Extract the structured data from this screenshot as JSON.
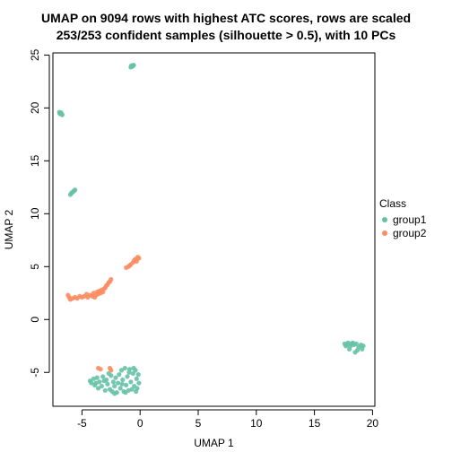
{
  "chart_data": {
    "type": "scatter",
    "title": "UMAP on 9094 rows with highest ATC scores, rows are scaled",
    "subtitle": "253/253 confident samples (silhouette > 0.5), with 10 PCs",
    "xlabel": "UMAP 1",
    "ylabel": "UMAP 2",
    "xlim": [
      -7.5,
      20.2
    ],
    "ylim": [
      -8.2,
      25.2
    ],
    "xticks": [
      -5,
      0,
      5,
      10,
      15,
      20
    ],
    "yticks": [
      -5,
      0,
      5,
      10,
      15,
      20,
      25
    ],
    "grid": false,
    "legend": {
      "title": "Class",
      "placement": "right",
      "entries": [
        {
          "label": "group1",
          "color": "#66C2A5"
        },
        {
          "label": "group2",
          "color": "#FC8D62"
        }
      ]
    },
    "series": [
      {
        "name": "group1",
        "color": "#66C2A5",
        "points": [
          [
            -0.75,
            24.0
          ],
          [
            -0.7,
            23.9
          ],
          [
            -0.55,
            24.05
          ],
          [
            -0.65,
            23.95
          ],
          [
            -0.8,
            23.85
          ],
          [
            -0.6,
            24.0
          ],
          [
            -6.95,
            19.6
          ],
          [
            -6.85,
            19.5
          ],
          [
            -6.75,
            19.4
          ],
          [
            -6.9,
            19.45
          ],
          [
            -6.8,
            19.55
          ],
          [
            -6.7,
            19.35
          ],
          [
            -6.0,
            11.8
          ],
          [
            -5.9,
            11.95
          ],
          [
            -5.75,
            12.1
          ],
          [
            -5.6,
            12.25
          ],
          [
            -5.85,
            12.0
          ],
          [
            -5.65,
            12.2
          ],
          [
            -4.3,
            -5.8
          ],
          [
            -4.2,
            -6.0
          ],
          [
            -4.0,
            -5.6
          ],
          [
            -3.9,
            -6.2
          ],
          [
            -3.7,
            -5.5
          ],
          [
            -3.6,
            -6.5
          ],
          [
            -3.5,
            -5.9
          ],
          [
            -3.3,
            -6.3
          ],
          [
            -3.2,
            -5.4
          ],
          [
            -3.0,
            -6.7
          ],
          [
            -2.9,
            -5.7
          ],
          [
            -2.8,
            -6.1
          ],
          [
            -2.6,
            -6.6
          ],
          [
            -2.5,
            -5.3
          ],
          [
            -2.4,
            -6.8
          ],
          [
            -2.3,
            -5.9
          ],
          [
            -2.2,
            -6.3
          ],
          [
            -2.1,
            -5.5
          ],
          [
            -2.0,
            -6.9
          ],
          [
            -1.9,
            -6.0
          ],
          [
            -1.8,
            -5.2
          ],
          [
            -1.7,
            -6.5
          ],
          [
            -1.6,
            -4.8
          ],
          [
            -1.5,
            -5.7
          ],
          [
            -1.4,
            -6.8
          ],
          [
            -1.3,
            -4.6
          ],
          [
            -1.2,
            -6.2
          ],
          [
            -1.1,
            -5.4
          ],
          [
            -1.0,
            -6.7
          ],
          [
            -0.9,
            -4.7
          ],
          [
            -0.8,
            -5.9
          ],
          [
            -0.7,
            -6.6
          ],
          [
            -0.6,
            -5.1
          ],
          [
            -0.5,
            -6.3
          ],
          [
            -0.4,
            -4.8
          ],
          [
            -0.3,
            -5.6
          ],
          [
            -0.25,
            -6.5
          ],
          [
            -0.15,
            -5.2
          ],
          [
            -0.1,
            -6.0
          ],
          [
            -0.35,
            -6.8
          ],
          [
            -0.55,
            -4.6
          ],
          [
            -1.25,
            -6.9
          ],
          [
            -2.7,
            -5.1
          ],
          [
            -3.1,
            -5.8
          ],
          [
            -3.8,
            -6.0
          ],
          [
            -2.2,
            -7.0
          ],
          [
            -1.55,
            -6.1
          ],
          [
            -0.95,
            -5.0
          ],
          [
            17.6,
            -2.3
          ],
          [
            17.8,
            -2.4
          ],
          [
            17.9,
            -2.2
          ],
          [
            18.1,
            -2.5
          ],
          [
            18.2,
            -2.3
          ],
          [
            18.0,
            -2.8
          ],
          [
            18.4,
            -2.4
          ],
          [
            18.5,
            -3.1
          ],
          [
            18.6,
            -2.3
          ],
          [
            18.8,
            -2.6
          ],
          [
            19.0,
            -2.4
          ],
          [
            19.1,
            -2.8
          ],
          [
            19.2,
            -2.5
          ],
          [
            18.3,
            -2.2
          ],
          [
            18.7,
            -2.9
          ],
          [
            17.7,
            -2.5
          ]
        ]
      },
      {
        "name": "group2",
        "color": "#FC8D62",
        "points": [
          [
            -6.2,
            2.3
          ],
          [
            -6.1,
            2.1
          ],
          [
            -6.0,
            1.9
          ],
          [
            -5.8,
            2.0
          ],
          [
            -5.6,
            2.1
          ],
          [
            -5.4,
            2.0
          ],
          [
            -5.2,
            2.2
          ],
          [
            -5.0,
            2.1
          ],
          [
            -4.8,
            2.2
          ],
          [
            -4.6,
            2.4
          ],
          [
            -4.5,
            2.1
          ],
          [
            -4.3,
            2.3
          ],
          [
            -4.1,
            2.2
          ],
          [
            -4.0,
            2.5
          ],
          [
            -3.9,
            2.1
          ],
          [
            -3.8,
            2.3
          ],
          [
            -3.7,
            2.6
          ],
          [
            -3.6,
            2.4
          ],
          [
            -3.5,
            2.7
          ],
          [
            -3.4,
            2.5
          ],
          [
            -3.3,
            2.8
          ],
          [
            -3.2,
            2.6
          ],
          [
            -3.1,
            2.9
          ],
          [
            -3.0,
            3.0
          ],
          [
            -2.9,
            3.2
          ],
          [
            -2.8,
            3.3
          ],
          [
            -2.7,
            3.5
          ],
          [
            -2.6,
            3.6
          ],
          [
            -2.5,
            3.8
          ],
          [
            -1.2,
            4.9
          ],
          [
            -1.0,
            5.0
          ],
          [
            -0.8,
            5.2
          ],
          [
            -0.6,
            5.4
          ],
          [
            -0.5,
            5.6
          ],
          [
            -0.4,
            5.7
          ],
          [
            -0.2,
            5.9
          ],
          [
            -0.1,
            5.8
          ],
          [
            -0.9,
            5.1
          ],
          [
            -0.3,
            5.5
          ],
          [
            -3.6,
            -4.6
          ],
          [
            -3.4,
            -4.7
          ],
          [
            -2.6,
            -4.6
          ],
          [
            -2.5,
            -4.8
          ]
        ]
      }
    ]
  }
}
